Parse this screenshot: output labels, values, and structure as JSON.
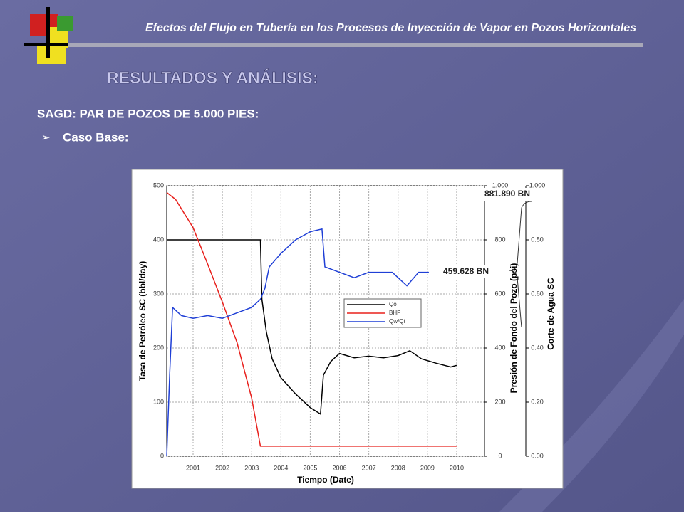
{
  "header": {
    "title": "Efectos del Flujo en Tubería en los Procesos de Inyección de Vapor en Pozos Horizontales"
  },
  "title": "RESULTADOS Y ANÁLISIS:",
  "subtitle": "SAGD: PAR DE POZOS DE 5.000 PIES:",
  "bullet": "Caso Base:",
  "chart_data": {
    "type": "line",
    "x_label": "Tiempo (Date)",
    "y_label": "Tasa de Petróleo SC (bbl/day)",
    "y2_label": "Presión de Fondo del Pozo (psi)",
    "y3_label": "Corte de Agua SC",
    "annotations": [
      "881.890 BN",
      "459.628 BN"
    ],
    "xlim": [
      2000.1,
      2010.95
    ],
    "xticks": [
      2001,
      2002,
      2003,
      2004,
      2005,
      2006,
      2007,
      2008,
      2009,
      2010
    ],
    "ylim": [
      0,
      500
    ],
    "yticks": [
      0,
      100,
      200,
      300,
      400,
      500
    ],
    "y2lim": [
      0,
      1000
    ],
    "y2ticks": [
      0,
      200,
      400,
      600,
      800,
      {
        "value": 1000,
        "label": "1.000"
      }
    ],
    "y3lim": [
      0,
      1
    ],
    "y3ticks": [
      {
        "value": 0,
        "label": "0.00"
      },
      {
        "value": 0.2,
        "label": "0.20"
      },
      {
        "value": 0.4,
        "label": "0.40"
      },
      {
        "value": 0.6,
        "label": "0.60"
      },
      {
        "value": 0.8,
        "label": "0.80"
      },
      {
        "value": 1,
        "label": "1.000"
      }
    ],
    "grid": true,
    "series": [
      {
        "name": "Qo",
        "color": "#000000",
        "axis": "y",
        "x": [
          2000.1,
          2003.3,
          2003.35,
          2003.5,
          2003.7,
          2004,
          2004.5,
          2005,
          2005.35,
          2005.45,
          2005.7,
          2006,
          2006.5,
          2007,
          2007.5,
          2008,
          2008.4,
          2008.8,
          2009.3,
          2009.8,
          2010
        ],
        "values": [
          400,
          400,
          290,
          230,
          180,
          145,
          115,
          90,
          78,
          150,
          175,
          190,
          182,
          185,
          182,
          186,
          195,
          180,
          172,
          165,
          168
        ]
      },
      {
        "name": "BHP",
        "color": "#e8201c",
        "axis": "y2",
        "x": [
          2000.1,
          2000.4,
          2001,
          2001.5,
          2002,
          2002.5,
          2003,
          2003.3,
          2010
        ],
        "values": [
          975,
          950,
          845,
          710,
          570,
          420,
          215,
          37,
          37
        ]
      },
      {
        "name": "Qw/Qt",
        "color": "#1f3fd6",
        "axis": "y3",
        "x": [
          2000.1,
          2000.2,
          2000.3,
          2000.6,
          2001,
          2001.5,
          2002,
          2002.5,
          2003,
          2003.3,
          2003.45,
          2003.6,
          2004,
          2004.5,
          2005,
          2005.4,
          2005.5,
          2006,
          2006.5,
          2007,
          2007.8,
          2008.3,
          2008.7,
          2009.05
        ],
        "values": [
          0,
          0.3,
          0.55,
          0.52,
          0.51,
          0.52,
          0.51,
          0.53,
          0.55,
          0.58,
          0.62,
          0.7,
          0.75,
          0.8,
          0.83,
          0.84,
          0.7,
          0.68,
          0.66,
          0.68,
          0.68,
          0.63,
          0.68,
          0.68
        ]
      }
    ]
  }
}
